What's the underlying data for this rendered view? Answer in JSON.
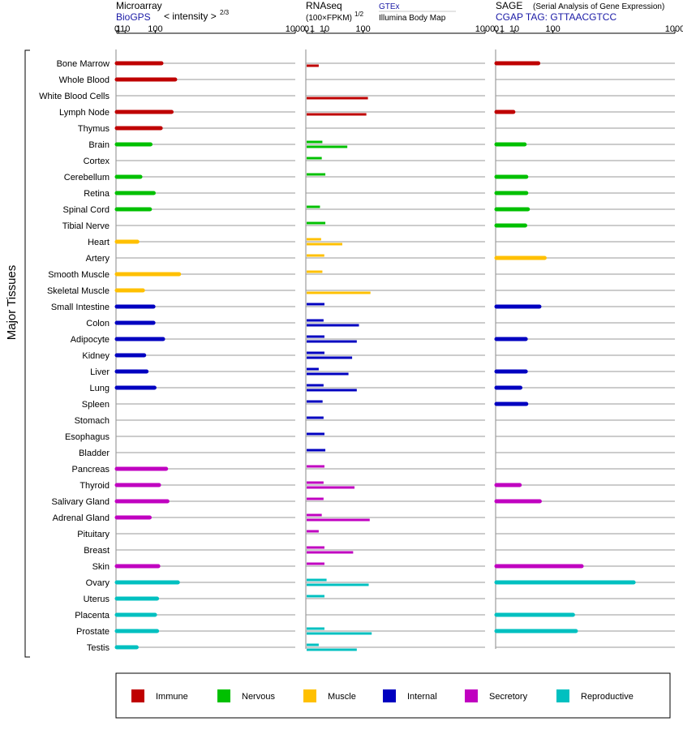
{
  "headers": {
    "microarray": {
      "title": "Microarray",
      "source": "BioGPS",
      "scale_label": "< intensity >",
      "scale_exp": "2/3"
    },
    "rnaseq": {
      "title": "RNAseq",
      "scale_label": "(100×FPKM)",
      "scale_exp": "1/2",
      "series_1": "GTEx",
      "series_2": "Illumina Body Map"
    },
    "sage": {
      "title": "SAGE",
      "subtitle": "(Serial Analysis of Gene Expression)",
      "tag_line": "CGAP TAG: GTTAACGTCC"
    }
  },
  "y_axis_title": "Major Tissues",
  "colors": {
    "Immune": "#bf0000",
    "Nervous": "#00c000",
    "Muscle": "#ffc000",
    "Internal": "#0000c0",
    "Secretory": "#c000c0",
    "Reproductive": "#00c0c0"
  },
  "legend": [
    "Immune",
    "Nervous",
    "Muscle",
    "Internal",
    "Secretory",
    "Reproductive"
  ],
  "chart_data": [
    {
      "type": "bar",
      "title": "Microarray",
      "xscale": "power-2/3",
      "xticks": [
        0,
        1,
        10,
        100,
        1000
      ],
      "xlim": [
        0,
        1000
      ],
      "categories": [
        "Bone Marrow",
        "Whole Blood",
        "White Blood Cells",
        "Lymph Node",
        "Thymus",
        "Brain",
        "Cortex",
        "Cerebellum",
        "Retina",
        "Spinal Cord",
        "Tibial Nerve",
        "Heart",
        "Artery",
        "Smooth Muscle",
        "Skeletal Muscle",
        "Small Intestine",
        "Colon",
        "Adipocyte",
        "Kidney",
        "Liver",
        "Lung",
        "Spleen",
        "Stomach",
        "Esophagus",
        "Bladder",
        "Pancreas",
        "Thyroid",
        "Salivary Gland",
        "Adrenal Gland",
        "Pituitary",
        "Breast",
        "Skin",
        "Ovary",
        "Uterus",
        "Placenta",
        "Prostate",
        "Testis"
      ],
      "groups": [
        "Immune",
        "Immune",
        "Immune",
        "Immune",
        "Immune",
        "Nervous",
        "Nervous",
        "Nervous",
        "Nervous",
        "Nervous",
        "Nervous",
        "Muscle",
        "Muscle",
        "Muscle",
        "Muscle",
        "Internal",
        "Internal",
        "Internal",
        "Internal",
        "Internal",
        "Internal",
        "Internal",
        "Internal",
        "Internal",
        "Internal",
        "Secretory",
        "Secretory",
        "Secretory",
        "Secretory",
        "Secretory",
        "Secretory",
        "Secretory",
        "Reproductive",
        "Reproductive",
        "Reproductive",
        "Reproductive",
        "Reproductive"
      ],
      "values": [
        125,
        187,
        null,
        170,
        122,
        82,
        null,
        48,
        94,
        80,
        null,
        39,
        null,
        206,
        56,
        93,
        93,
        132,
        60,
        68,
        97,
        null,
        null,
        null,
        null,
        145,
        115,
        151,
        79,
        null,
        null,
        112,
        200,
        107,
        99,
        107,
        37
      ]
    },
    {
      "type": "bar",
      "title": "RNAseq",
      "xscale": "power-1/2",
      "xticks": [
        0,
        1,
        10,
        100,
        1000
      ],
      "xlim": [
        0,
        1000
      ],
      "categories": [
        "Bone Marrow",
        "Whole Blood",
        "White Blood Cells",
        "Lymph Node",
        "Thymus",
        "Brain",
        "Cortex",
        "Cerebellum",
        "Retina",
        "Spinal Cord",
        "Tibial Nerve",
        "Heart",
        "Artery",
        "Smooth Muscle",
        "Skeletal Muscle",
        "Small Intestine",
        "Colon",
        "Adipocyte",
        "Kidney",
        "Liver",
        "Lung",
        "Spleen",
        "Stomach",
        "Esophagus",
        "Bladder",
        "Pancreas",
        "Thyroid",
        "Salivary Gland",
        "Adrenal Gland",
        "Pituitary",
        "Breast",
        "Skin",
        "Ovary",
        "Uterus",
        "Placenta",
        "Prostate",
        "Testis"
      ],
      "series": [
        {
          "name": "GTEx",
          "values": [
            null,
            null,
            null,
            null,
            null,
            7.8,
            7.2,
            11.0,
            null,
            5.6,
            11.0,
            6.6,
            9.8,
            7.8,
            null,
            10.0,
            9.0,
            10.0,
            10.0,
            4.6,
            9.0,
            8.0,
            9.0,
            10.0,
            11.0,
            10.0,
            9.0,
            9.0,
            7.2,
            4.6,
            10.0,
            10.0,
            12.5,
            10.0,
            null,
            10.0,
            4.6
          ]
        },
        {
          "name": "Illumina Body Map",
          "values": [
            4.6,
            null,
            118,
            112,
            null,
            52,
            null,
            null,
            null,
            null,
            null,
            40,
            null,
            null,
            128,
            null,
            86,
            79,
            65,
            55,
            79,
            null,
            null,
            null,
            null,
            null,
            72,
            null,
            125,
            null,
            68,
            null,
            121,
            null,
            null,
            133,
            79
          ]
        }
      ]
    },
    {
      "type": "bar",
      "title": "SAGE",
      "xscale": "power-1/2",
      "xticks": [
        0,
        1,
        10,
        100,
        1000
      ],
      "xlim": [
        0,
        1000
      ],
      "categories": [
        "Bone Marrow",
        "Whole Blood",
        "White Blood Cells",
        "Lymph Node",
        "Thymus",
        "Brain",
        "Cortex",
        "Cerebellum",
        "Retina",
        "Spinal Cord",
        "Tibial Nerve",
        "Heart",
        "Artery",
        "Smooth Muscle",
        "Skeletal Muscle",
        "Small Intestine",
        "Colon",
        "Adipocyte",
        "Kidney",
        "Liver",
        "Lung",
        "Spleen",
        "Stomach",
        "Esophagus",
        "Bladder",
        "Pancreas",
        "Thyroid",
        "Salivary Gland",
        "Adrenal Gland",
        "Pituitary",
        "Breast",
        "Skin",
        "Ovary",
        "Uterus",
        "Placenta",
        "Prostate",
        "Testis"
      ],
      "values": [
        55,
        null,
        null,
        9,
        null,
        25,
        null,
        28,
        28,
        31,
        26,
        null,
        73,
        null,
        null,
        58,
        null,
        27,
        null,
        27,
        18,
        28,
        null,
        null,
        null,
        null,
        17,
        59,
        null,
        null,
        null,
        228,
        591,
        null,
        184,
        198,
        null
      ]
    }
  ]
}
